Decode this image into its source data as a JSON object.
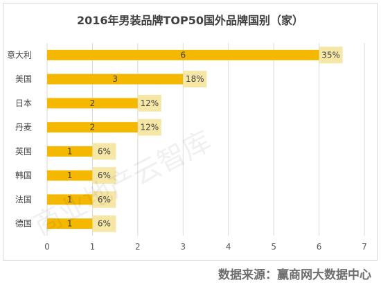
{
  "chart_data": {
    "type": "bar",
    "orientation": "horizontal",
    "title": "2016年男装品牌TOP50国外品牌国别（家）",
    "categories": [
      "意大利",
      "美国",
      "日本",
      "丹麦",
      "英国",
      "韩国",
      "法国",
      "德国"
    ],
    "values": [
      6,
      3,
      2,
      2,
      1,
      1,
      1,
      1
    ],
    "percent_labels": [
      "35%",
      "18%",
      "12%",
      "12%",
      "6%",
      "6%",
      "6%",
      "6%"
    ],
    "xlim": [
      0,
      7
    ],
    "xticks": [
      "0",
      "1",
      "2",
      "3",
      "4",
      "5",
      "6",
      "7"
    ],
    "grid": "vertical",
    "bar_color": "#f5b800",
    "label_box_color": "#f6e7a7"
  },
  "source": "数据来源：赢商网大数据中心",
  "watermark": "商业地产云智库"
}
